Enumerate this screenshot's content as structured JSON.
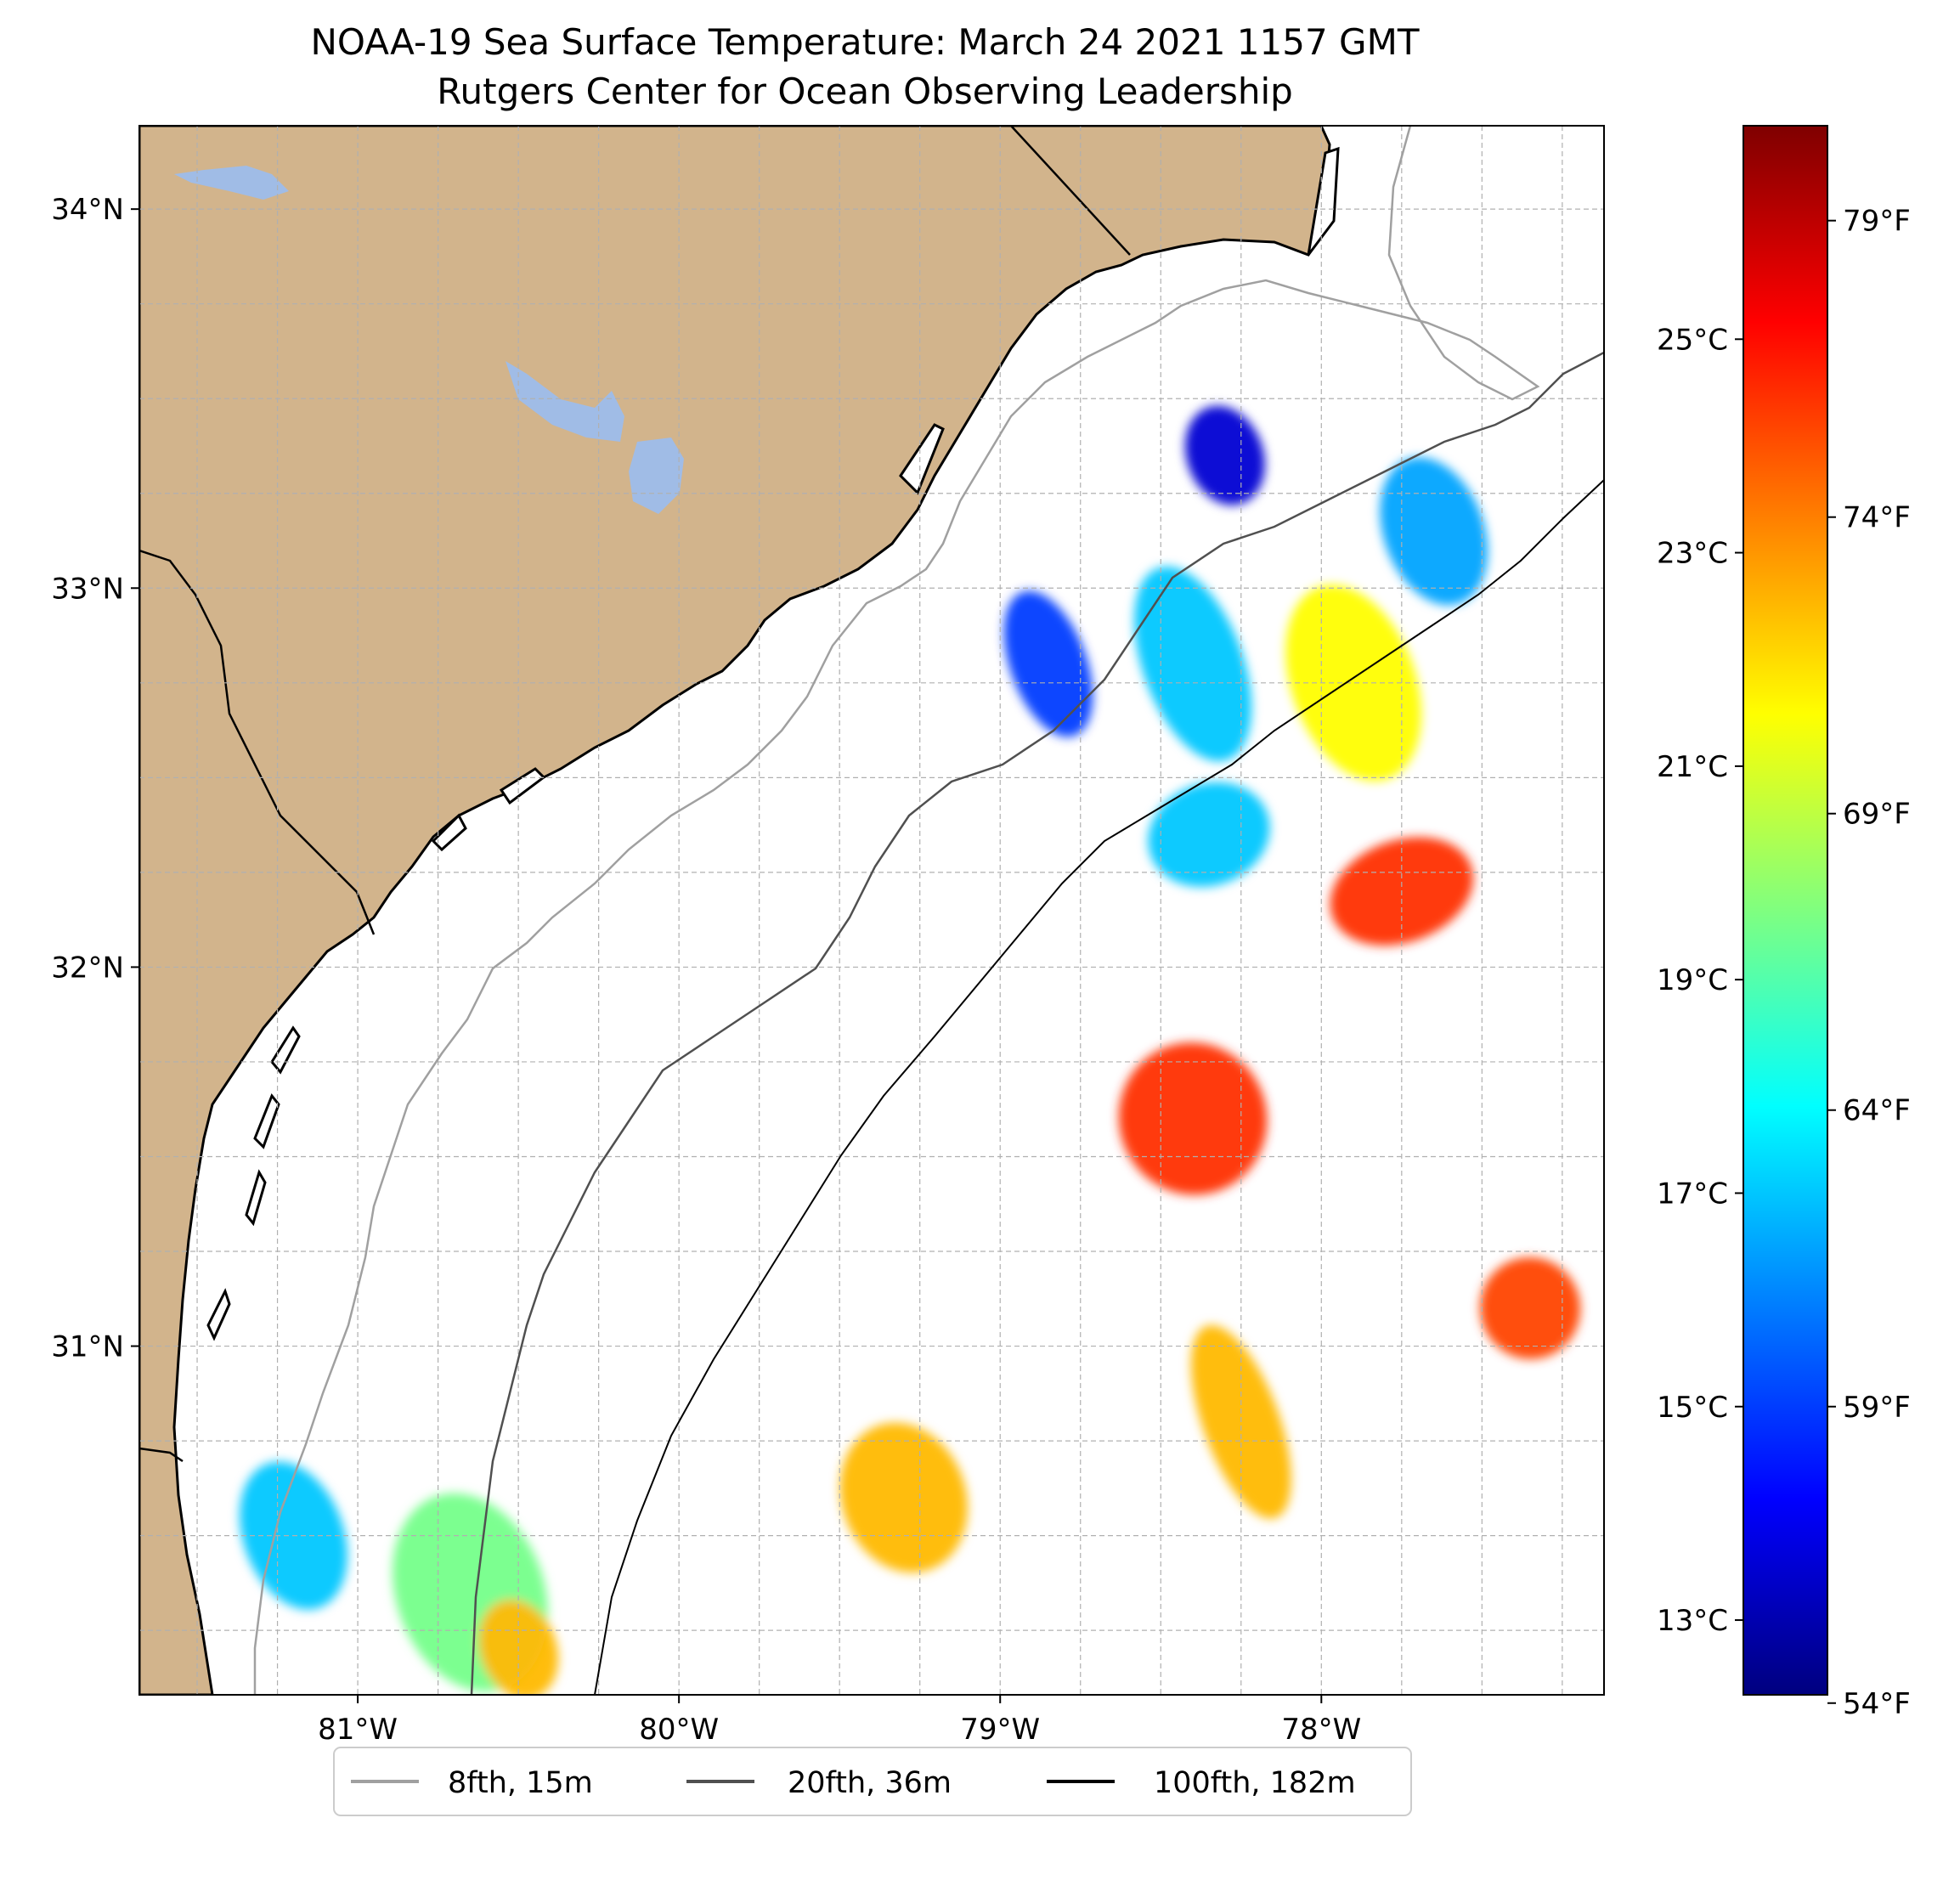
{
  "title": {
    "line1": "NOAA-19 Sea Surface Temperature: March 24 2021 1157 GMT",
    "line2": "Rutgers Center for Ocean Observing Leadership"
  },
  "map": {
    "lon_range": [
      -81.68,
      -77.12
    ],
    "lat_range": [
      30.08,
      34.22
    ],
    "gridlines": true,
    "land_color": "#d2b48c",
    "lake_color": "#a0bce6",
    "lat_ticks": [
      {
        "value": 34,
        "label": "34°N"
      },
      {
        "value": 33,
        "label": "33°N"
      },
      {
        "value": 32,
        "label": "32°N"
      },
      {
        "value": 31,
        "label": "31°N"
      }
    ],
    "lon_ticks": [
      {
        "value": -81,
        "label": "81°W"
      },
      {
        "value": -80,
        "label": "80°W"
      },
      {
        "value": -79,
        "label": "79°W"
      },
      {
        "value": -78,
        "label": "78°W"
      }
    ]
  },
  "colorbar": {
    "colormap": "jet",
    "range_c": [
      12.3,
      27.0
    ],
    "celsius_ticks": [
      {
        "value": 25,
        "label": "25°C"
      },
      {
        "value": 23,
        "label": "23°C"
      },
      {
        "value": 21,
        "label": "21°C"
      },
      {
        "value": 19,
        "label": "19°C"
      },
      {
        "value": 17,
        "label": "17°C"
      },
      {
        "value": 15,
        "label": "15°C"
      },
      {
        "value": 13,
        "label": "13°C"
      }
    ],
    "fahrenheit_ticks": [
      {
        "value": 79,
        "label": "79°F"
      },
      {
        "value": 74,
        "label": "74°F"
      },
      {
        "value": 69,
        "label": "69°F"
      },
      {
        "value": 64,
        "label": "64°F"
      },
      {
        "value": 59,
        "label": "59°F"
      },
      {
        "value": 54,
        "label": "54°F"
      }
    ]
  },
  "legend": {
    "placement": "bottom-center",
    "items": [
      {
        "label": "8fth, 15m",
        "color": "#a0a0a0"
      },
      {
        "label": "20fth, 36m",
        "color": "#505050"
      },
      {
        "label": "100fth, 182m",
        "color": "#000000"
      }
    ]
  },
  "sst_patches": [
    {
      "lon": -78.3,
      "lat": 33.35,
      "temp_c": 13.5
    },
    {
      "lon": -77.65,
      "lat": 33.15,
      "temp_c": 16.5
    },
    {
      "lon": -77.9,
      "lat": 32.75,
      "temp_c": 21.5
    },
    {
      "lon": -77.75,
      "lat": 32.2,
      "temp_c": 24.5
    },
    {
      "lon": -78.85,
      "lat": 32.8,
      "temp_c": 15.0
    },
    {
      "lon": -78.4,
      "lat": 32.8,
      "temp_c": 17.0
    },
    {
      "lon": -78.35,
      "lat": 32.35,
      "temp_c": 17.0
    },
    {
      "lon": -78.4,
      "lat": 31.6,
      "temp_c": 24.5
    },
    {
      "lon": -78.25,
      "lat": 30.8,
      "temp_c": 22.5
    },
    {
      "lon": -77.35,
      "lat": 31.1,
      "temp_c": 24.2
    },
    {
      "lon": -79.3,
      "lat": 30.6,
      "temp_c": 22.5
    },
    {
      "lon": -80.65,
      "lat": 30.35,
      "temp_c": 19.5
    },
    {
      "lon": -80.5,
      "lat": 30.2,
      "temp_c": 22.5
    },
    {
      "lon": -81.2,
      "lat": 30.5,
      "temp_c": 17.0
    }
  ]
}
